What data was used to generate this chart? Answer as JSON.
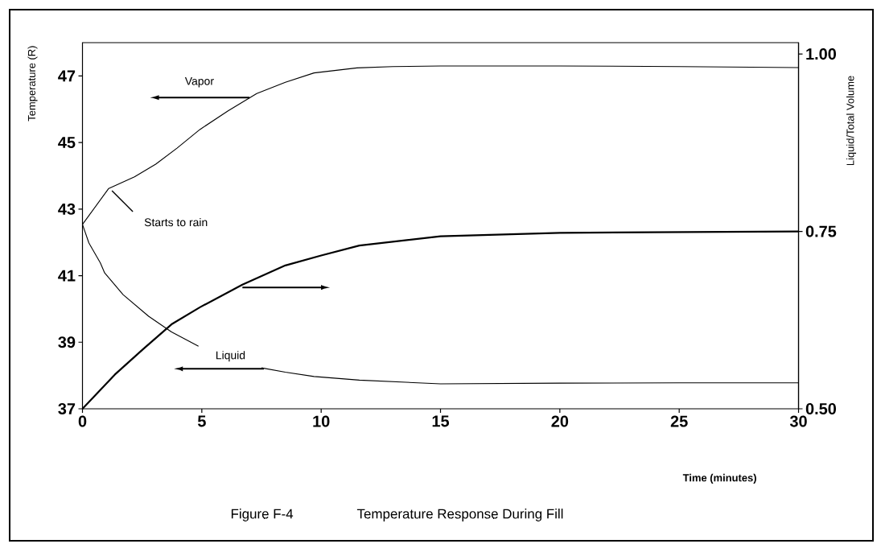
{
  "chart_data": {
    "type": "line",
    "title": "Figure F-4",
    "subtitle": "Temperature Response During Fill",
    "xlabel": "Time (minutes)",
    "ylabel": "Temperature (R)",
    "y2label": "Liquid/Total Volume",
    "xlim": [
      0,
      30
    ],
    "xticks": [
      0,
      5,
      10,
      15,
      20,
      25,
      30
    ],
    "ylim": [
      37,
      48
    ],
    "yticks": [
      37,
      39,
      41,
      43,
      45,
      47
    ],
    "y2lim": [
      0.5,
      1.016
    ],
    "y2ticks": [
      {
        "value": 0.5,
        "label": "0.50"
      },
      {
        "value": 0.75,
        "label": "0.75"
      },
      {
        "value": 1.0,
        "label": "1.00"
      }
    ],
    "grid": false,
    "marker": "none",
    "line_style": "solid",
    "annotations": [
      {
        "text": "Starts to rain",
        "x": 1.1,
        "y": 43.6
      }
    ],
    "series": [
      {
        "name": "Vapor",
        "color": "#000000",
        "x": [
          0,
          1.1,
          2.18,
          3.07,
          3.96,
          4.92,
          6.1,
          7.3,
          8.5,
          9.7,
          11.5,
          13,
          15,
          20,
          25,
          30
        ],
        "values": [
          42.54,
          43.62,
          43.97,
          44.35,
          44.83,
          45.39,
          45.95,
          46.47,
          46.81,
          47.09,
          47.24,
          47.28,
          47.3,
          47.3,
          47.28,
          47.25
        ]
      },
      {
        "name": "Liquid",
        "color": "#000000",
        "x": [
          0,
          0.27,
          0.75,
          0.93,
          1.7,
          2.77,
          3.73,
          4.86,
          6.2,
          7.5,
          8.5,
          9.7,
          11.6,
          15,
          20,
          25,
          30
        ],
        "values": [
          42.54,
          41.98,
          41.38,
          41.08,
          40.43,
          39.78,
          39.31,
          38.88,
          null,
          38.23,
          38.1,
          37.97,
          37.86,
          37.75,
          37.77,
          37.78,
          37.78
        ]
      },
      {
        "color": "#000000",
        "axis": "y2",
        "x": [
          0,
          1.35,
          2.54,
          3.73,
          4.92,
          6.7,
          8.5,
          10,
          11.6,
          15,
          20,
          25,
          30
        ],
        "values": [
          0.5,
          0.548,
          0.584,
          0.619,
          0.643,
          0.675,
          0.702,
          0.716,
          0.73,
          0.743,
          0.748,
          0.749,
          0.75
        ]
      }
    ]
  }
}
